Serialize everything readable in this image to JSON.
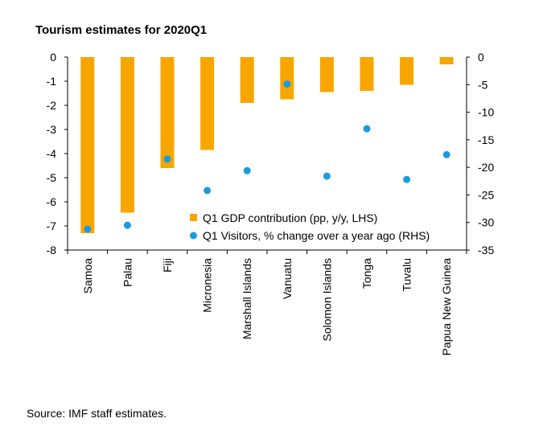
{
  "title": "Tourism estimates for 2020Q1",
  "source": "Source: IMF staff estimates.",
  "colors": {
    "bar": "#F7A600",
    "dot": "#1A9BE0",
    "axis": "#000000"
  },
  "chart_data": {
    "type": "bar",
    "categories": [
      "Samoa",
      "Palau",
      "Fiji",
      "Micronesia",
      "Marshall Islands",
      "Vanuatu",
      "Solomon Islands",
      "Tonga",
      "Tuvalu",
      "Papua New Guinea"
    ],
    "series": [
      {
        "name": "Q1 GDP contribution (pp, y/y, LHS)",
        "kind": "bar",
        "axis": "left",
        "values": [
          -7.3,
          -6.45,
          -4.6,
          -3.85,
          -1.9,
          -1.75,
          -1.45,
          -1.4,
          -1.15,
          -0.3
        ]
      },
      {
        "name": "Q1 Visitors, % change over a year ago (RHS)",
        "kind": "scatter",
        "axis": "right",
        "values": [
          -31.2,
          -30.5,
          -18.5,
          -24.2,
          -20.6,
          -4.9,
          -21.6,
          -13.0,
          -22.2,
          -17.7
        ]
      }
    ],
    "y_left": {
      "lim": [
        -8,
        0
      ],
      "ticks": [
        "0",
        "-1",
        "-2",
        "-3",
        "-4",
        "-5",
        "-6",
        "-7",
        "-8"
      ]
    },
    "y_right": {
      "lim": [
        -35,
        0
      ],
      "ticks": [
        "0",
        "-5",
        "-10",
        "-15",
        "-20",
        "-25",
        "-30",
        "-35"
      ]
    },
    "legend": "bottom-right",
    "grid": false
  }
}
